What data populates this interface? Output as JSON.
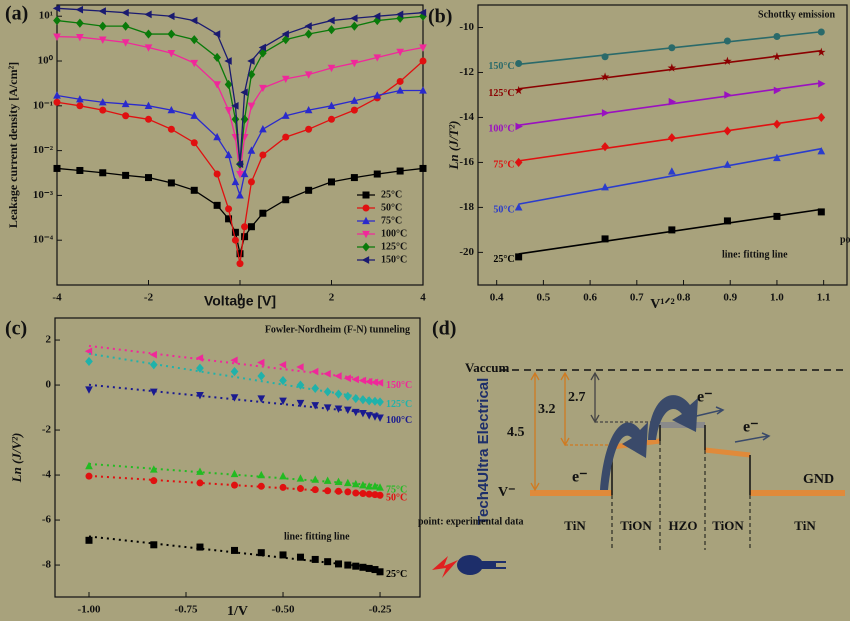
{
  "chart_data": [
    {
      "type": "line",
      "label": "(a)",
      "xlabel": "Voltage [V]",
      "ylabel": "Leakage current density [A/cm²]",
      "log_y": true,
      "lines": "connect",
      "legend": "lower right",
      "x": [
        -4,
        -3.5,
        -3,
        -2.5,
        -2,
        -1.5,
        -1,
        -0.5,
        -0.25,
        -0.1,
        0,
        0.1,
        0.25,
        0.5,
        1,
        1.5,
        2,
        2.5,
        3,
        3.5,
        4
      ],
      "xlim": [
        -4,
        4
      ],
      "xticks": [
        -4,
        -2,
        0,
        2,
        4
      ],
      "ylim": [
        1e-05,
        17.8
      ],
      "yticks": [
        {
          "value": 0.0001,
          "label": "10⁻⁴"
        },
        {
          "value": 0.001,
          "label": "10⁻³"
        },
        {
          "value": 0.01,
          "label": "10⁻²"
        },
        {
          "value": 0.1,
          "label": "10⁻¹"
        },
        {
          "value": 1,
          "label": "10⁰"
        },
        {
          "value": 10,
          "label": "10¹"
        }
      ],
      "series": [
        {
          "name": "25°C",
          "color": "#000000",
          "marker": "square",
          "values": [
            0.004,
            0.0036,
            0.0032,
            0.0028,
            0.0025,
            0.0019,
            0.0013,
            0.0006,
            0.0003,
            0.00015,
            5e-05,
            0.00012,
            0.0002,
            0.0004,
            0.0008,
            0.0013,
            0.002,
            0.0025,
            0.003,
            0.0035,
            0.004
          ]
        },
        {
          "name": "50°C",
          "color": "#e01010",
          "marker": "circle",
          "values": [
            0.12,
            0.1,
            0.08,
            0.06,
            0.05,
            0.03,
            0.015,
            0.003,
            0.0005,
            0.0001,
            3e-05,
            0.0002,
            0.002,
            0.008,
            0.02,
            0.03,
            0.05,
            0.08,
            0.15,
            0.35,
            1.0
          ]
        },
        {
          "name": "75°C",
          "color": "#2a2acc",
          "marker": "triangle-up",
          "values": [
            0.17,
            0.14,
            0.12,
            0.11,
            0.1,
            0.08,
            0.06,
            0.02,
            0.008,
            0.002,
            0.001,
            0.003,
            0.01,
            0.03,
            0.06,
            0.08,
            0.1,
            0.13,
            0.17,
            0.22,
            0.22
          ]
        },
        {
          "name": "100°C",
          "color": "#f0289a",
          "marker": "triangle-down",
          "values": [
            3.5,
            3.4,
            3.0,
            2.6,
            2.0,
            1.5,
            0.9,
            0.3,
            0.08,
            0.02,
            0.003,
            0.02,
            0.1,
            0.25,
            0.4,
            0.5,
            0.7,
            0.9,
            1.2,
            1.6,
            2.0
          ]
        },
        {
          "name": "125°C",
          "color": "#0a7a0a",
          "marker": "diamond",
          "values": [
            8,
            7,
            6,
            6,
            4,
            4,
            3,
            1.2,
            0.3,
            0.05,
            0.005,
            0.05,
            0.5,
            1.5,
            3,
            4,
            5,
            6,
            8,
            9,
            10
          ]
        },
        {
          "name": "150°C",
          "color": "#1a1a70",
          "marker": "triangle-left",
          "values": [
            15,
            14,
            13,
            12,
            11,
            10,
            8,
            4,
            1,
            0.1,
            0.005,
            0.2,
            1,
            2,
            4,
            6,
            8,
            9,
            10,
            11,
            12
          ]
        }
      ]
    },
    {
      "type": "scatter",
      "label": "(b)",
      "xlabel": "V¹ᐟ²",
      "ylabel": "Ln (J/T²)",
      "lines": "fit",
      "series_labels": "left",
      "annotations": [
        "Schottky emission",
        "point: experimental data",
        "line: fitting line"
      ],
      "x": [
        0.447,
        0.632,
        0.775,
        0.894,
        1.0,
        1.095
      ],
      "xlim": [
        0.36,
        1.15
      ],
      "xticks": [
        0.4,
        0.5,
        0.6,
        0.7,
        0.8,
        0.9,
        {
          "value": 1,
          "label": "1.0"
        },
        1.1
      ],
      "ylim": [
        -21.45,
        -9.0
      ],
      "yticks": [
        -20,
        -18,
        -16,
        -14,
        -12,
        -10
      ],
      "series": [
        {
          "name": "25°C",
          "color": "#000000",
          "marker": "square",
          "values": [
            -20.2,
            -19.4,
            -19.0,
            -18.6,
            -18.4,
            -18.2
          ]
        },
        {
          "name": "50°C",
          "color": "#2a3ccc",
          "marker": "triangle-up",
          "values": [
            -18.0,
            -17.1,
            -16.4,
            -16.1,
            -15.8,
            -15.5
          ]
        },
        {
          "name": "75°C",
          "color": "#e01010",
          "marker": "diamond",
          "values": [
            -16.0,
            -15.3,
            -14.9,
            -14.6,
            -14.3,
            -14.0
          ]
        },
        {
          "name": "100°C",
          "color": "#9a10c0",
          "marker": "triangle-right",
          "values": [
            -14.4,
            -13.8,
            -13.3,
            -13.0,
            -12.8,
            -12.5
          ]
        },
        {
          "name": "125°C",
          "color": "#8b0000",
          "marker": "star",
          "values": [
            -12.8,
            -12.2,
            -11.8,
            -11.5,
            -11.3,
            -11.1
          ]
        },
        {
          "name": "150°C",
          "color": "#2a6a6a",
          "marker": "circle",
          "values": [
            -11.6,
            -11.3,
            -10.9,
            -10.6,
            -10.4,
            -10.2
          ]
        }
      ]
    },
    {
      "type": "scatter",
      "label": "(c)",
      "xlabel": "1/V",
      "ylabel": "Ln (J/V²)",
      "lines": "fit-dotted",
      "series_labels": "right",
      "annotations": [
        "Fowler-Nordheim (F-N) tunneling",
        "point: experimental data",
        "line: fitting line"
      ],
      "x": [
        -1.0,
        -0.833,
        -0.714,
        -0.625,
        -0.556,
        -0.5,
        -0.455,
        -0.417,
        -0.385,
        -0.357,
        -0.333,
        -0.3125,
        -0.294,
        -0.278,
        -0.263,
        -0.25
      ],
      "xlim": [
        -1.0876,
        -0.147
      ],
      "xticks": [
        {
          "value": -1,
          "label": "-1.00"
        },
        {
          "value": -0.75,
          "label": "-0.75"
        },
        {
          "value": -0.5,
          "label": "-0.50"
        },
        {
          "value": -0.25,
          "label": "-0.25"
        }
      ],
      "ylim": [
        -9.42,
        2.98
      ],
      "yticks": [
        -8,
        -6,
        -4,
        -2,
        0,
        2
      ],
      "series": [
        {
          "name": "150°C",
          "color": "#f0289a",
          "marker": "triangle-left",
          "values": [
            1.5,
            1.35,
            1.2,
            1.1,
            1.0,
            0.9,
            0.8,
            0.6,
            0.5,
            0.4,
            0.3,
            0.25,
            0.2,
            0.15,
            0.12,
            0.1
          ]
        },
        {
          "name": "125°C",
          "color": "#20b2aa",
          "marker": "diamond",
          "values": [
            1.05,
            0.9,
            0.75,
            0.6,
            0.4,
            0.2,
            0.0,
            -0.15,
            -0.3,
            -0.4,
            -0.5,
            -0.6,
            -0.65,
            -0.7,
            -0.72,
            -0.75
          ]
        },
        {
          "name": "100°C",
          "color": "#1a1a90",
          "marker": "triangle-down",
          "values": [
            -0.2,
            -0.3,
            -0.45,
            -0.55,
            -0.6,
            -0.7,
            -0.8,
            -0.9,
            -1.0,
            -1.05,
            -1.1,
            -1.2,
            -1.25,
            -1.35,
            -1.4,
            -1.45
          ]
        },
        {
          "name": "75°C",
          "color": "#22bb22",
          "marker": "triangle-up",
          "values": [
            -3.6,
            -3.75,
            -3.85,
            -3.95,
            -4.0,
            -4.05,
            -4.15,
            -4.2,
            -4.25,
            -4.3,
            -4.35,
            -4.4,
            -4.45,
            -4.5,
            -4.5,
            -4.55
          ]
        },
        {
          "name": "50°C",
          "color": "#e01010",
          "marker": "circle",
          "values": [
            -4.05,
            -4.25,
            -4.35,
            -4.45,
            -4.5,
            -4.55,
            -4.6,
            -4.65,
            -4.7,
            -4.72,
            -4.75,
            -4.8,
            -4.82,
            -4.85,
            -4.87,
            -4.9
          ]
        },
        {
          "name": "25°C",
          "color": "#000000",
          "marker": "square",
          "values": [
            -6.9,
            -7.1,
            -7.2,
            -7.35,
            -7.45,
            -7.55,
            -7.65,
            -7.75,
            -7.85,
            -7.95,
            -8.0,
            -8.05,
            -8.1,
            -8.15,
            -8.2,
            -8.3
          ]
        }
      ]
    }
  ],
  "diagram": {
    "label": "(d)",
    "vacuum": "Vaccum",
    "barriers": [
      "4.5",
      "3.2",
      "2.7"
    ],
    "electrons": [
      "e⁻",
      "e⁻",
      "e⁻"
    ],
    "left_terminal": "V⁻",
    "right_terminal": "GND",
    "layers": [
      "TiN",
      "TiON",
      "HZO",
      "TiON",
      "TiN"
    ]
  },
  "watermark": "Tech4Ultra Electrical"
}
